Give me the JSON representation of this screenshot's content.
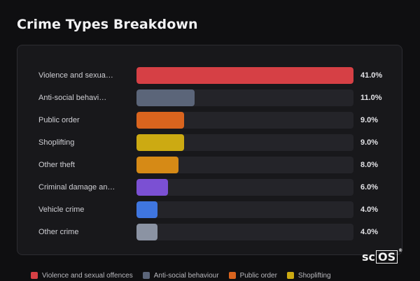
{
  "header": {
    "title": "Crime Types Breakdown"
  },
  "rows": [
    {
      "label": "Violence and sexua…",
      "value": "41.0%",
      "fraction": 1.0,
      "color": "#d64045"
    },
    {
      "label": "Anti-social behavi…",
      "value": "11.0%",
      "fraction": 0.268,
      "color": "#5b6579"
    },
    {
      "label": "Public order",
      "value": "9.0%",
      "fraction": 0.219,
      "color": "#d9641e"
    },
    {
      "label": "Shoplifting",
      "value": "9.0%",
      "fraction": 0.219,
      "color": "#ccaa12"
    },
    {
      "label": "Other theft",
      "value": "8.0%",
      "fraction": 0.195,
      "color": "#d68a16"
    },
    {
      "label": "Criminal damage an…",
      "value": "6.0%",
      "fraction": 0.146,
      "color": "#7b50d3"
    },
    {
      "label": "Vehicle crime",
      "value": "4.0%",
      "fraction": 0.098,
      "color": "#3f76e0"
    },
    {
      "label": "Other crime",
      "value": "4.0%",
      "fraction": 0.098,
      "color": "#8b93a3"
    }
  ],
  "legend": [
    {
      "label": "Violence and sexual offences",
      "color": "#d64045"
    },
    {
      "label": "Anti-social behaviour",
      "color": "#5b6579"
    },
    {
      "label": "Public order",
      "color": "#d9641e"
    },
    {
      "label": "Shoplifting",
      "color": "#ccaa12"
    }
  ],
  "logo": {
    "text_sc": "sc",
    "text_os": "OS",
    "reg": "®"
  }
}
